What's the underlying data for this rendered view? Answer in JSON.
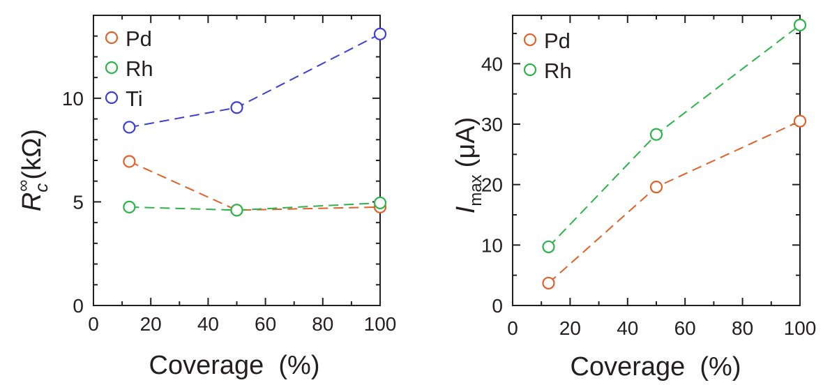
{
  "chart_data": [
    {
      "type": "line",
      "xlabel": "Coverage  (%)",
      "ylabel": {
        "base": "R",
        "sub": "c",
        "sup": "∞",
        "unit": "(kΩ)"
      },
      "xlim": [
        0,
        100
      ],
      "ylim": [
        0,
        14
      ],
      "x_ticks": [
        "0",
        "20",
        "40",
        "60",
        "80",
        "100"
      ],
      "y_ticks": [
        "0",
        "5",
        "10"
      ],
      "legend_position": "top-left",
      "series": [
        {
          "name": "Pd",
          "color": "#e0612a",
          "x": [
            12.5,
            50,
            100
          ],
          "y": [
            6.95,
            4.6,
            4.75
          ]
        },
        {
          "name": "Rh",
          "color": "#2db34a",
          "x": [
            12.5,
            50,
            100
          ],
          "y": [
            4.75,
            4.6,
            4.95
          ]
        },
        {
          "name": "Ti",
          "color": "#3c3fd6",
          "x": [
            12.5,
            50,
            100
          ],
          "y": [
            8.6,
            9.55,
            13.1
          ]
        }
      ]
    },
    {
      "type": "line",
      "xlabel": "Coverage  (%)",
      "ylabel": {
        "base": "I",
        "sub": "max",
        "unit": "(μA)"
      },
      "xlim": [
        0,
        100
      ],
      "ylim": [
        0,
        48
      ],
      "x_ticks": [
        "0",
        "20",
        "40",
        "60",
        "80",
        "100"
      ],
      "y_ticks": [
        "0",
        "10",
        "20",
        "30",
        "40"
      ],
      "legend_position": "top-left",
      "series": [
        {
          "name": "Pd",
          "color": "#e0612a",
          "x": [
            12.5,
            50,
            100
          ],
          "y": [
            3.7,
            19.6,
            30.5
          ]
        },
        {
          "name": "Rh",
          "color": "#2db34a",
          "x": [
            12.5,
            50,
            100
          ],
          "y": [
            9.7,
            28.3,
            46.4
          ]
        }
      ]
    }
  ]
}
